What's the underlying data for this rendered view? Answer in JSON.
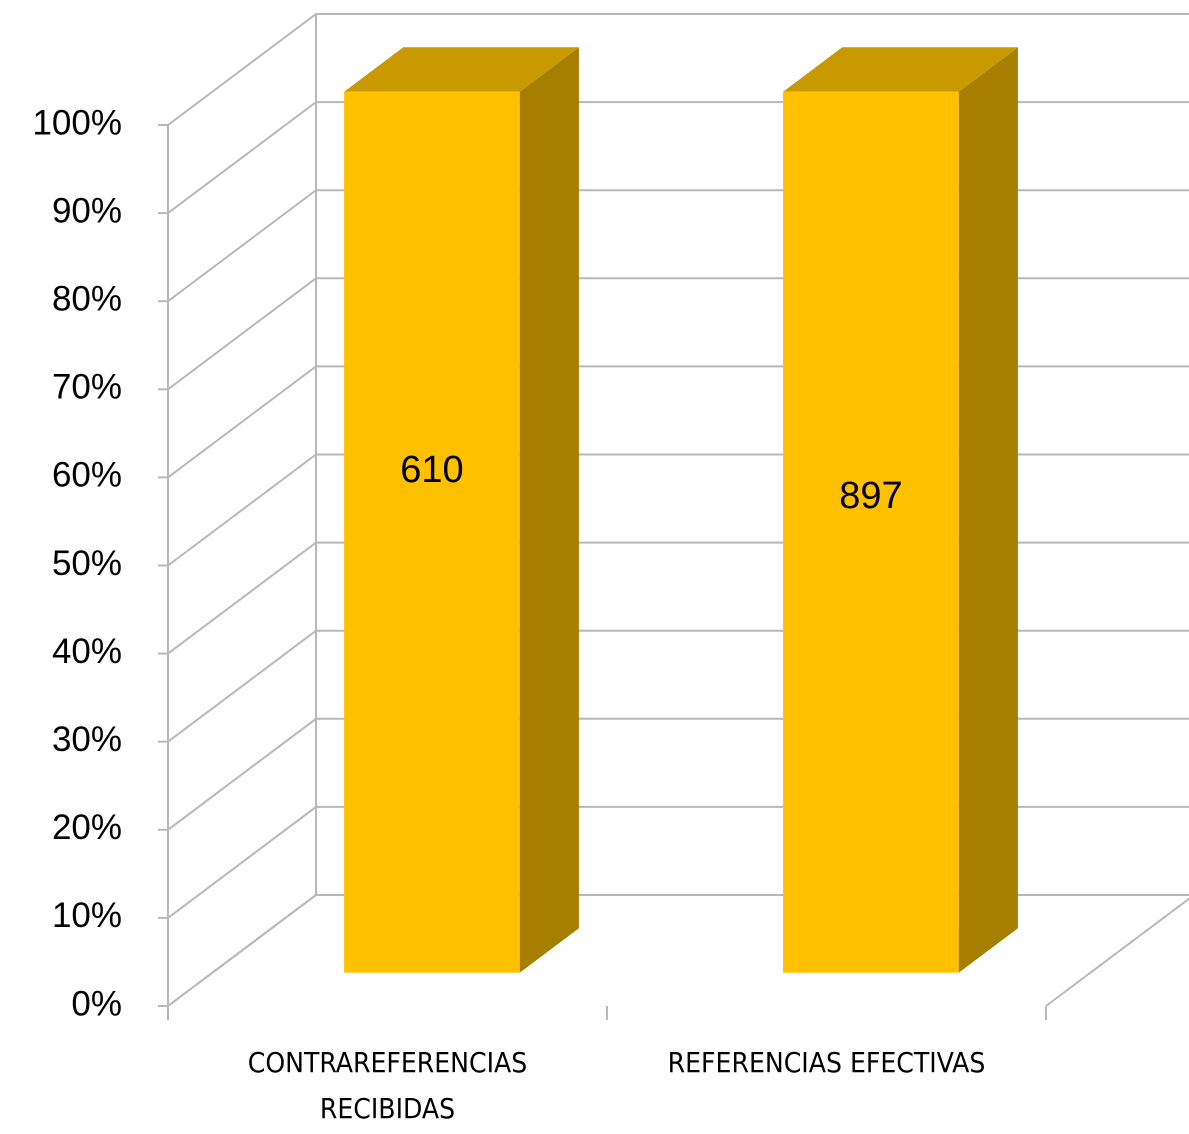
{
  "chart_data": {
    "type": "bar",
    "stacking": "percent",
    "categories": [
      "CONTRAREFERENCIAS RECIBIDAS",
      "REFERENCIAS EFECTIVAS"
    ],
    "series": [
      {
        "color": "#FFC000",
        "values": [
          610,
          897
        ]
      }
    ],
    "ylim": [
      0,
      100
    ],
    "yticks": [
      {
        "value": 0,
        "label": "0%"
      },
      {
        "value": 10,
        "label": "10%"
      },
      {
        "value": 20,
        "label": "20%"
      },
      {
        "value": 30,
        "label": "30%"
      },
      {
        "value": 40,
        "label": "40%"
      },
      {
        "value": 50,
        "label": "50%"
      },
      {
        "value": 60,
        "label": "60%"
      },
      {
        "value": 70,
        "label": "70%"
      },
      {
        "value": 80,
        "label": "80%"
      },
      {
        "value": 90,
        "label": "90%"
      },
      {
        "value": 100,
        "label": "100%"
      }
    ],
    "grid": true
  }
}
